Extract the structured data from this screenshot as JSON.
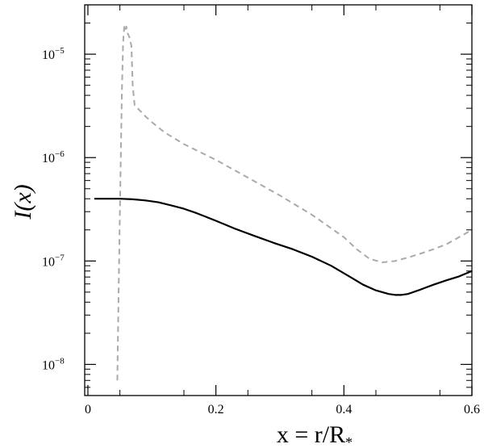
{
  "chart_data": {
    "type": "line",
    "title": "",
    "xlabel": "x = r/R",
    "xlabel_subscript": "*",
    "ylabel": "I(x)",
    "xlim": [
      -0.005,
      0.6
    ],
    "ylim": [
      5e-09,
      3e-05
    ],
    "yscale": "log",
    "grid": false,
    "legend": "none",
    "x_ticks": [
      {
        "value": 0,
        "label": "0"
      },
      {
        "value": 0.2,
        "label": "0.2"
      },
      {
        "value": 0.4,
        "label": "0.4"
      },
      {
        "value": 0.6,
        "label": "0.6"
      }
    ],
    "y_ticks": [
      {
        "value": 1e-05,
        "base": "10",
        "exp": "−5"
      },
      {
        "value": 1e-06,
        "base": "10",
        "exp": "−6"
      },
      {
        "value": 1e-07,
        "base": "10",
        "exp": "−7"
      },
      {
        "value": 1e-08,
        "base": "10",
        "exp": "−8"
      }
    ],
    "series": [
      {
        "style": "solid",
        "color": "#000000",
        "x": [
          0.01,
          0.03,
          0.05,
          0.07,
          0.09,
          0.11,
          0.13,
          0.15,
          0.17,
          0.2,
          0.23,
          0.26,
          0.29,
          0.32,
          0.35,
          0.38,
          0.41,
          0.43,
          0.45,
          0.47,
          0.48,
          0.49,
          0.5,
          0.52,
          0.54,
          0.56,
          0.58,
          0.6
        ],
        "y": [
          4e-07,
          4e-07,
          4e-07,
          3.95e-07,
          3.85e-07,
          3.7e-07,
          3.45e-07,
          3.2e-07,
          2.9e-07,
          2.45e-07,
          2.05e-07,
          1.75e-07,
          1.5e-07,
          1.3e-07,
          1.1e-07,
          9e-08,
          7e-08,
          5.9e-08,
          5.2e-08,
          4.8e-08,
          4.7e-08,
          4.7e-08,
          4.8e-08,
          5.3e-08,
          5.9e-08,
          6.5e-08,
          7.1e-08,
          8e-08
        ]
      },
      {
        "style": "dashed",
        "color": "#aaaaaa",
        "x": [
          0.046,
          0.047,
          0.05,
          0.053,
          0.055,
          0.057,
          0.059,
          0.06,
          0.062,
          0.065,
          0.068,
          0.07,
          0.073,
          0.08,
          0.09,
          0.1,
          0.12,
          0.15,
          0.2,
          0.25,
          0.3,
          0.35,
          0.4,
          0.42,
          0.44,
          0.46,
          0.48,
          0.5,
          0.52,
          0.54,
          0.56,
          0.58,
          0.6
        ],
        "y": [
          7e-09,
          2e-08,
          3e-07,
          4e-06,
          1.3e-05,
          1.9e-05,
          1.75e-05,
          1.85e-05,
          1.6e-05,
          1.45e-05,
          1.2e-05,
          5e-06,
          3.2e-06,
          2.9e-06,
          2.5e-06,
          2.2e-06,
          1.75e-06,
          1.35e-06,
          9.5e-07,
          6.4e-07,
          4.3e-07,
          2.8e-07,
          1.7e-07,
          1.3e-07,
          1.05e-07,
          9.7e-08,
          1e-07,
          1.08e-07,
          1.18e-07,
          1.3e-07,
          1.45e-07,
          1.7e-07,
          2e-07
        ]
      }
    ]
  }
}
